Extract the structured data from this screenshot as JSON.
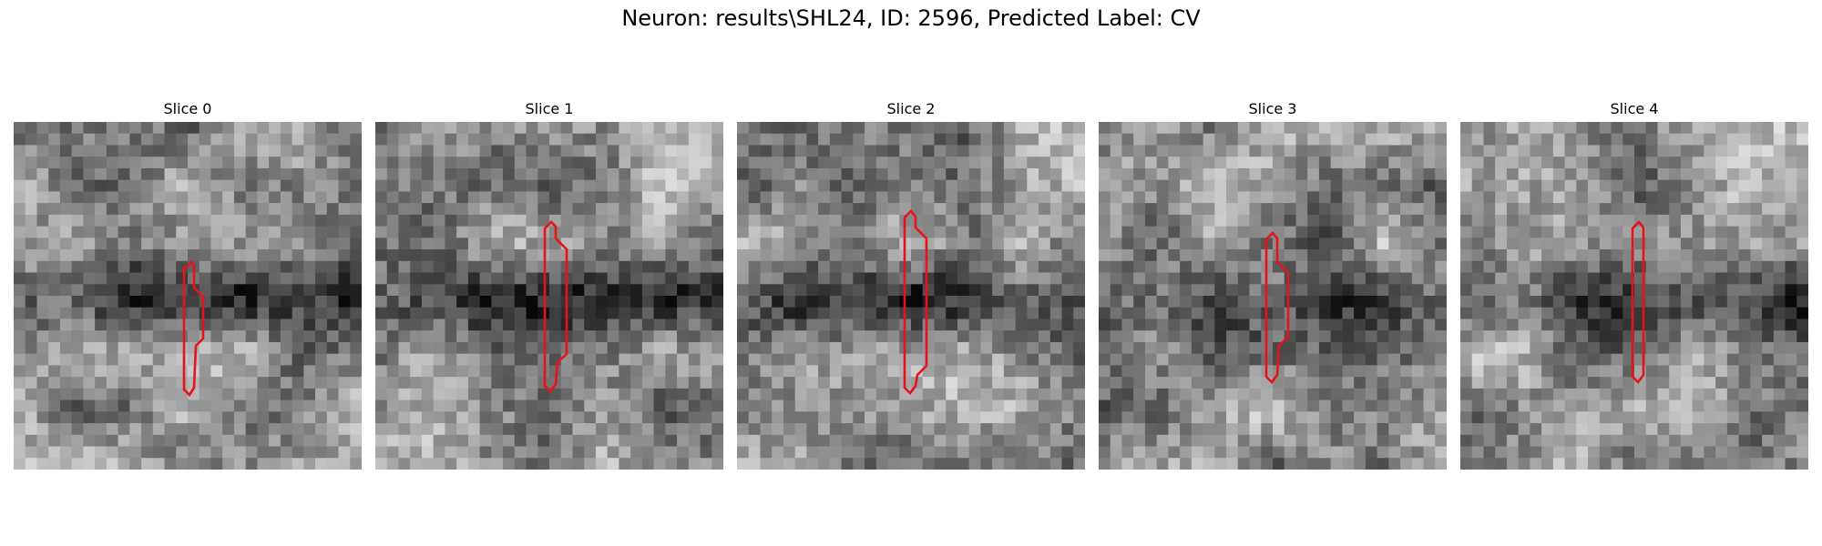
{
  "figure": {
    "title": "Neuron: results\\SHL24, ID: 2596, Predicted Label: CV"
  },
  "slices": [
    {
      "title": "Slice 0"
    },
    {
      "title": "Slice 1"
    },
    {
      "title": "Slice 2"
    },
    {
      "title": "Slice 3"
    },
    {
      "title": "Slice 4"
    }
  ],
  "colors": {
    "contour": "#e8121a",
    "background": "#ffffff"
  }
}
